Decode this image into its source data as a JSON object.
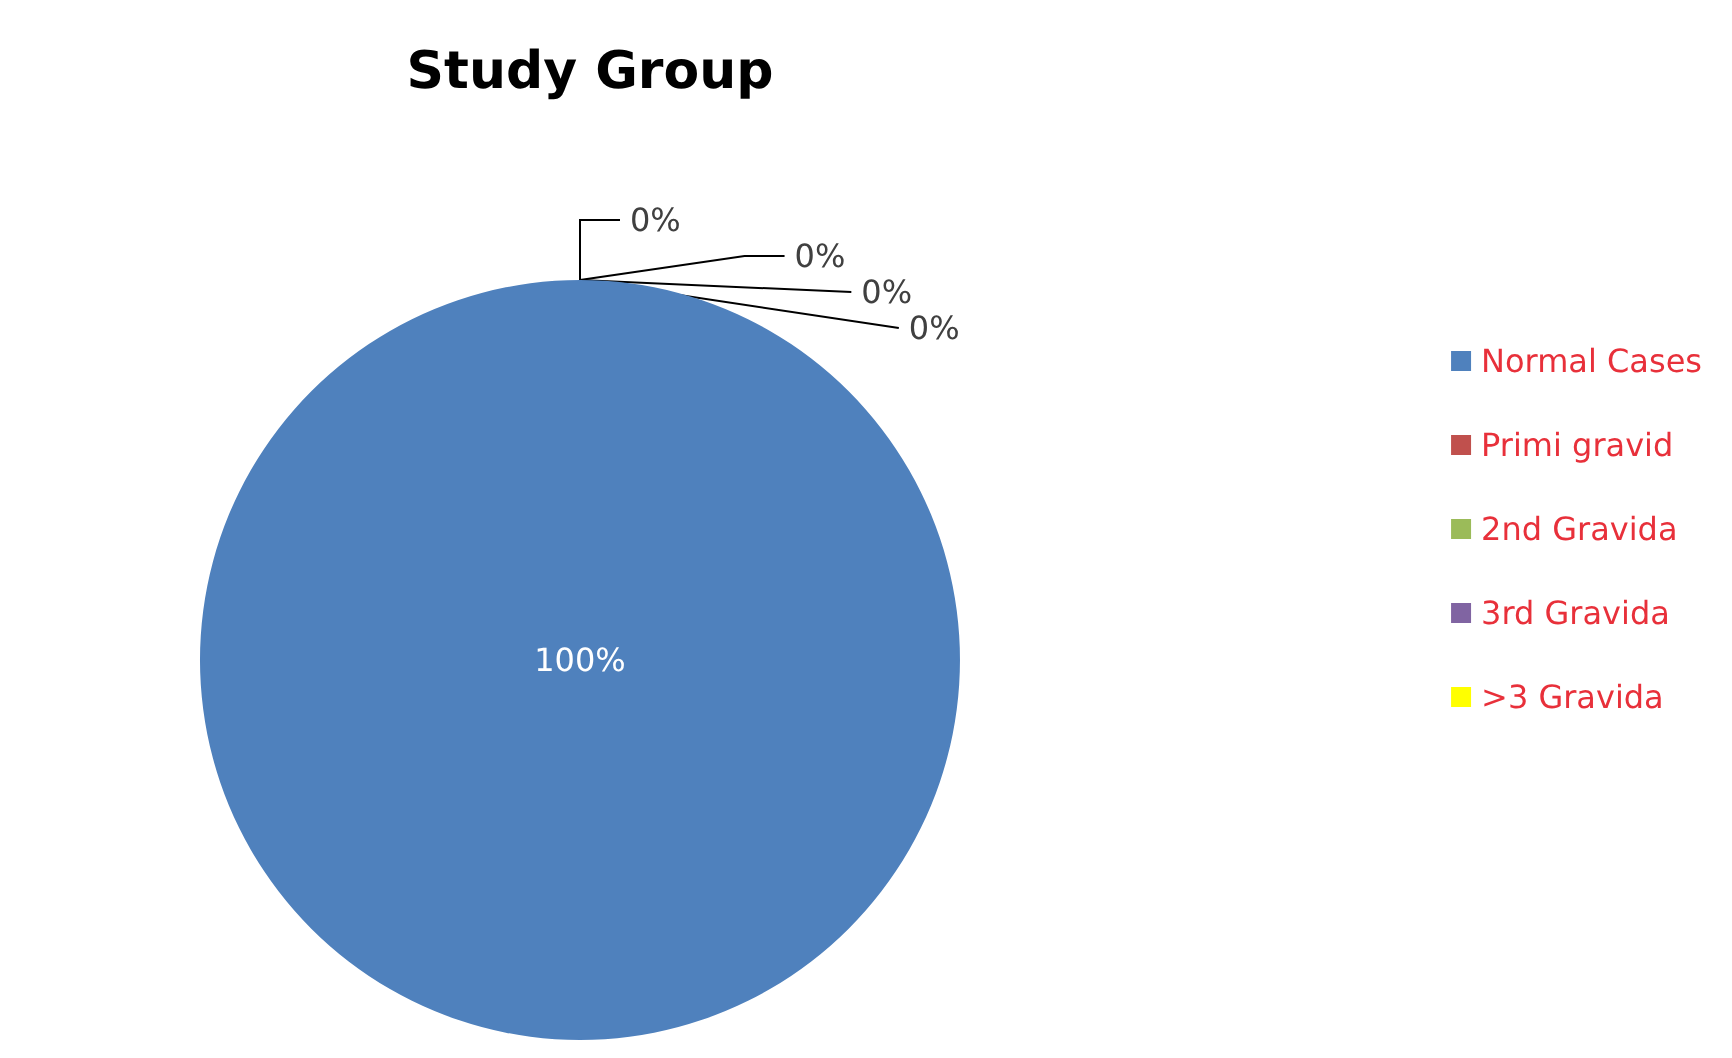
{
  "chart_data": {
    "type": "pie",
    "title": "Study Group",
    "categories": [
      "Normal Cases",
      "Primi gravid",
      "2nd Gravida",
      "3rd Gravida",
      ">3 Gravida"
    ],
    "values": [
      100,
      0,
      0,
      0,
      0
    ],
    "colors": [
      "#4f81bd",
      "#c0504d",
      "#9bbb59",
      "#8064a2",
      "#ffff00"
    ],
    "value_labels": [
      "100%",
      "0%",
      "0%",
      "0%",
      "0%"
    ],
    "legend": "right"
  }
}
